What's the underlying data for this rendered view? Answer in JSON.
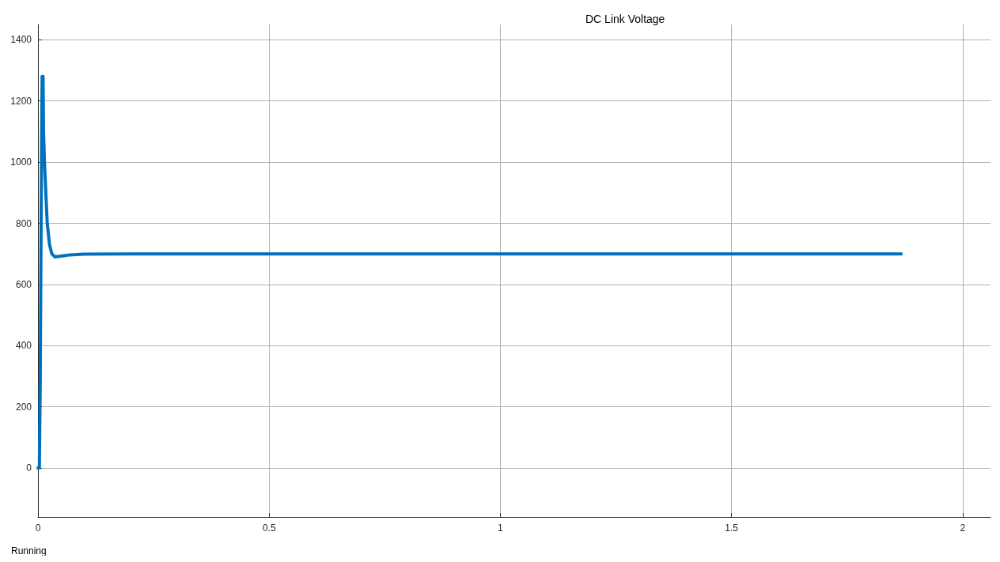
{
  "chart_data": {
    "type": "line",
    "title": "DC Link Voltage",
    "x": [
      0,
      0.003,
      0.005,
      0.006,
      0.007,
      0.008,
      0.009,
      0.011,
      0.012,
      0.014,
      0.017,
      0.02,
      0.025,
      0.03,
      0.037,
      0.05,
      0.07,
      0.1,
      0.2,
      0.5,
      1,
      1.5,
      1.867
    ],
    "series": [
      {
        "color": "#0072bd",
        "values": [
          0,
          0,
          300,
          600,
          850,
          1100,
          1280,
          1280,
          1100,
          1000,
          900,
          800,
          730,
          700,
          690,
          693,
          697,
          699,
          700,
          700,
          700,
          700,
          700
        ]
      }
    ],
    "xlim": [
      0,
      2.06
    ],
    "xticks": [
      0,
      0.5,
      1,
      1.5,
      2
    ],
    "ylim": [
      -160,
      1450
    ],
    "yticks": [
      0,
      200,
      400,
      600,
      800,
      1000,
      1200,
      1400
    ],
    "grid": true,
    "marker": "none",
    "line_style": "solid",
    "annotations": [
      "Running"
    ]
  }
}
